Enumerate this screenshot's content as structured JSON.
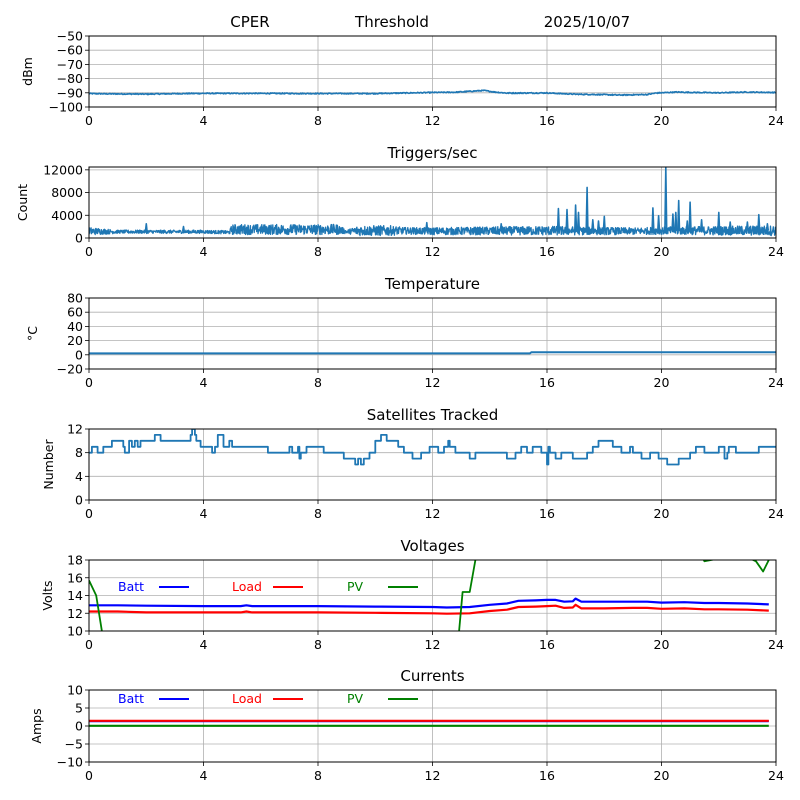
{
  "figure": {
    "suptitle": {
      "site": "CPER",
      "mode": "Threshold",
      "date": "2025/10/07"
    }
  },
  "chart_data": [
    {
      "id": "dbm",
      "type": "line",
      "title": "",
      "xlabel": "",
      "ylabel": "dBm",
      "xlim": [
        0,
        24
      ],
      "ylim": [
        -100,
        -50
      ],
      "xticks": [
        0,
        4,
        8,
        12,
        16,
        20,
        24
      ],
      "yticks": [
        -100,
        -90,
        -80,
        -70,
        -60,
        -50
      ],
      "ytick_labels": [
        "−100",
        "−90",
        "−80",
        "−70",
        "−60",
        "−50"
      ],
      "grid": true,
      "series": [
        {
          "name": "dBm",
          "color": "#1f77b4",
          "noise": 0.35,
          "x": [
            0,
            0.5,
            2,
            3,
            4,
            6,
            8,
            10,
            12,
            12.8,
            13.5,
            13.8,
            14.2,
            14.6,
            16,
            17,
            18,
            18.5,
            19.5,
            19.8,
            20.5,
            21,
            22,
            23,
            24
          ],
          "y": [
            -90.5,
            -90.7,
            -90.9,
            -90.6,
            -90.4,
            -90.4,
            -90.5,
            -90.5,
            -89.8,
            -89.6,
            -88.7,
            -88.4,
            -89.5,
            -90.2,
            -90.1,
            -91,
            -91.3,
            -91.6,
            -91.2,
            -90.2,
            -89.5,
            -89.7,
            -90,
            -89.5,
            -89.8
          ]
        }
      ]
    },
    {
      "id": "triggers",
      "type": "line",
      "title": "Triggers/sec",
      "xlabel": "",
      "ylabel": "Count",
      "xlim": [
        0,
        24
      ],
      "ylim": [
        0,
        12500
      ],
      "xticks": [
        0,
        4,
        8,
        12,
        16,
        20,
        24
      ],
      "yticks": [
        0,
        4000,
        8000,
        12000
      ],
      "ytick_labels": [
        "0",
        "4000",
        "8000",
        "12000"
      ],
      "grid": true,
      "series": [
        {
          "name": "Count",
          "color": "#1f77b4",
          "baseline": {
            "x": [
              0,
              1,
              2,
              3,
              4,
              4.9,
              5,
              8.7,
              9,
              9.4,
              10.5,
              12,
              16,
              19,
              20,
              24
            ],
            "y": [
              1200,
              1100,
              1100,
              1100,
              1100,
              1000,
              1500,
              1500,
              1100,
              1300,
              1300,
              1200,
              1300,
              1200,
              1300,
              1300
            ]
          },
          "band": {
            "x": [
              0,
              0.5,
              1,
              4.9,
              5,
              8.7,
              9,
              9.4,
              10.5,
              11,
              16,
              19,
              24
            ],
            "y": [
              700,
              500,
              300,
              300,
              900,
              900,
              300,
              900,
              900,
              600,
              800,
              600,
              900
            ]
          },
          "spikes": [
            {
              "x": 2.0,
              "y": 2500
            },
            {
              "x": 3.3,
              "y": 2000
            },
            {
              "x": 11.8,
              "y": 2700
            },
            {
              "x": 14.4,
              "y": 2500
            },
            {
              "x": 16.4,
              "y": 5200
            },
            {
              "x": 16.7,
              "y": 5000
            },
            {
              "x": 17.0,
              "y": 5800
            },
            {
              "x": 17.1,
              "y": 4500
            },
            {
              "x": 17.4,
              "y": 8900
            },
            {
              "x": 17.6,
              "y": 3200
            },
            {
              "x": 17.8,
              "y": 3000
            },
            {
              "x": 18.0,
              "y": 3800
            },
            {
              "x": 19.7,
              "y": 5300
            },
            {
              "x": 19.9,
              "y": 3900
            },
            {
              "x": 20.15,
              "y": 12500
            },
            {
              "x": 20.4,
              "y": 4200
            },
            {
              "x": 20.5,
              "y": 4500
            },
            {
              "x": 20.6,
              "y": 6600
            },
            {
              "x": 20.9,
              "y": 3000
            },
            {
              "x": 21.0,
              "y": 6300
            },
            {
              "x": 21.4,
              "y": 3200
            },
            {
              "x": 22.0,
              "y": 4500
            },
            {
              "x": 22.4,
              "y": 2800
            },
            {
              "x": 23.0,
              "y": 2800
            },
            {
              "x": 23.4,
              "y": 4100
            },
            {
              "x": 23.7,
              "y": 2500
            }
          ]
        }
      ]
    },
    {
      "id": "temperature",
      "type": "line",
      "title": "Temperature",
      "xlabel": "",
      "ylabel": "°C",
      "xlim": [
        0,
        24
      ],
      "ylim": [
        -20,
        80
      ],
      "xticks": [
        0,
        4,
        8,
        12,
        16,
        20,
        24
      ],
      "yticks": [
        -20,
        0,
        20,
        40,
        60,
        80
      ],
      "ytick_labels": [
        "−20",
        "0",
        "20",
        "40",
        "60",
        "80"
      ],
      "grid": true,
      "series": [
        {
          "name": "Temperature",
          "color": "#1f77b4",
          "x": [
            0,
            15.4,
            15.45,
            24
          ],
          "y": [
            2,
            2,
            3.5,
            3.5
          ]
        }
      ]
    },
    {
      "id": "satellites",
      "type": "line",
      "title": "Satellites Tracked",
      "xlabel": "",
      "ylabel": "Number",
      "xlim": [
        0,
        24
      ],
      "ylim": [
        0,
        12
      ],
      "xticks": [
        0,
        4,
        8,
        12,
        16,
        20,
        24
      ],
      "yticks": [
        0,
        4,
        8,
        12
      ],
      "ytick_labels": [
        "0",
        "4",
        "8",
        "12"
      ],
      "grid": true,
      "series": [
        {
          "name": "Satellites",
          "color": "#1f77b4",
          "step": true,
          "x": [
            0,
            0.1,
            0.3,
            0.5,
            0.8,
            1.2,
            1.25,
            1.4,
            1.5,
            1.6,
            1.7,
            1.8,
            1.9,
            2.3,
            2.5,
            3.3,
            3.55,
            3.6,
            3.7,
            3.75,
            3.9,
            4.3,
            4.4,
            4.5,
            4.7,
            4.9,
            5.0,
            6.2,
            6.25,
            7.0,
            7.1,
            7.3,
            7.35,
            7.4,
            7.6,
            8.2,
            8.9,
            9.3,
            9.4,
            9.5,
            9.6,
            9.8,
            10.0,
            10.2,
            10.4,
            10.8,
            11.0,
            11.3,
            11.6,
            11.9,
            12.2,
            12.4,
            12.55,
            12.6,
            12.8,
            13.3,
            13.5,
            14.6,
            14.9,
            15.1,
            15.3,
            15.5,
            15.8,
            16.0,
            16.05,
            16.1,
            16.3,
            16.5,
            16.9,
            17.4,
            17.6,
            17.8,
            18.3,
            18.6,
            18.9,
            19.0,
            19.3,
            19.6,
            19.9,
            20.2,
            20.6,
            21.0,
            21.2,
            21.5,
            22.0,
            22.2,
            22.3,
            22.35,
            22.6,
            23.4,
            24
          ],
          "y": [
            8,
            9,
            8,
            9,
            10,
            9,
            8,
            10,
            9,
            10,
            9,
            10,
            10,
            11,
            10,
            10,
            11,
            12,
            11,
            10,
            9,
            8,
            9,
            11,
            9,
            10,
            9,
            9,
            8,
            9,
            8,
            9,
            7,
            8,
            9,
            8,
            7,
            6,
            7,
            6,
            7,
            8,
            10,
            11,
            10,
            9,
            8,
            7,
            8,
            9,
            8,
            9,
            10,
            9,
            8,
            7,
            8,
            7,
            8,
            9,
            8,
            9,
            8,
            6,
            9,
            8,
            7,
            8,
            7,
            8,
            9,
            10,
            9,
            8,
            9,
            8,
            7,
            8,
            7,
            6,
            7,
            8,
            9,
            8,
            9,
            7,
            8,
            9,
            8,
            9,
            9
          ]
        }
      ]
    },
    {
      "id": "voltages",
      "type": "line",
      "title": "Voltages",
      "xlabel": "",
      "ylabel": "Volts",
      "xlim": [
        0,
        24
      ],
      "ylim": [
        10,
        18
      ],
      "xticks": [
        0,
        4,
        8,
        12,
        16,
        20,
        24
      ],
      "yticks": [
        10,
        12,
        14,
        16,
        18
      ],
      "ytick_labels": [
        "10",
        "12",
        "14",
        "16",
        "18"
      ],
      "grid": true,
      "legend": [
        "Batt",
        "Load",
        "PV"
      ],
      "series": [
        {
          "name": "Batt",
          "color": "#0000ff",
          "x": [
            0,
            1,
            2,
            4,
            5.3,
            5.5,
            5.7,
            8,
            10,
            12,
            12.5,
            13.3,
            14,
            14.6,
            15,
            15.6,
            16,
            16.3,
            16.6,
            16.9,
            17.0,
            17.2,
            18,
            19,
            19.5,
            20,
            20.8,
            21.5,
            22,
            23,
            23.75
          ],
          "y": [
            12.9,
            12.9,
            12.85,
            12.8,
            12.8,
            12.9,
            12.8,
            12.8,
            12.75,
            12.7,
            12.65,
            12.7,
            12.95,
            13.1,
            13.4,
            13.45,
            13.5,
            13.5,
            13.3,
            13.35,
            13.65,
            13.3,
            13.3,
            13.3,
            13.3,
            13.2,
            13.25,
            13.15,
            13.15,
            13.1,
            13.0
          ]
        },
        {
          "name": "Load",
          "color": "#ff0000",
          "x": [
            0,
            1,
            2,
            4,
            5.3,
            5.5,
            5.7,
            8,
            10,
            12,
            12.5,
            13.3,
            14,
            14.6,
            15,
            15.6,
            16,
            16.3,
            16.6,
            16.9,
            17.0,
            17.2,
            18,
            19,
            19.5,
            20,
            20.8,
            21.5,
            22,
            23,
            23.75
          ],
          "y": [
            12.2,
            12.2,
            12.1,
            12.1,
            12.1,
            12.2,
            12.1,
            12.1,
            12.05,
            12.0,
            11.95,
            12.0,
            12.25,
            12.4,
            12.7,
            12.75,
            12.8,
            12.85,
            12.6,
            12.65,
            12.95,
            12.55,
            12.55,
            12.6,
            12.6,
            12.5,
            12.55,
            12.45,
            12.45,
            12.4,
            12.3
          ]
        },
        {
          "name": "PV",
          "color": "#008000",
          "segments": [
            {
              "x": [
                0,
                0.25,
                0.5
              ],
              "y": [
                15.7,
                14.0,
                9.0
              ]
            },
            {
              "x": [
                12.9,
                13.05,
                13.3,
                13.5,
                13.9
              ],
              "y": [
                9.0,
                14.4,
                14.4,
                18.0,
                25.0
              ]
            },
            {
              "x": [
                20.9,
                21.5,
                21.9,
                22.5,
                23.0,
                23.3,
                23.55,
                23.75,
                24.0
              ],
              "y": [
                22.0,
                17.85,
                18.1,
                19.5,
                18.3,
                17.85,
                16.7,
                18.0,
                21.0
              ]
            }
          ]
        }
      ]
    },
    {
      "id": "currents",
      "type": "line",
      "title": "Currents",
      "xlabel": "",
      "ylabel": "Amps",
      "xlim": [
        0,
        24
      ],
      "ylim": [
        -10,
        10
      ],
      "xticks": [
        0,
        4,
        8,
        12,
        16,
        20,
        24
      ],
      "yticks": [
        -10,
        -5,
        0,
        5,
        10
      ],
      "ytick_labels": [
        "−10",
        "−5",
        "0",
        "5",
        "10"
      ],
      "grid": true,
      "legend": [
        "Batt",
        "Load",
        "PV"
      ],
      "series": [
        {
          "name": "Batt",
          "color": "#0000ff",
          "x": [
            0,
            23.75
          ],
          "y": [
            1.35,
            1.35
          ]
        },
        {
          "name": "Load",
          "color": "#ff0000",
          "x": [
            0,
            23.75
          ],
          "y": [
            1.45,
            1.45
          ]
        },
        {
          "name": "PV",
          "color": "#008000",
          "x": [
            0,
            23.75
          ],
          "y": [
            0.05,
            0.05
          ]
        }
      ]
    }
  ]
}
